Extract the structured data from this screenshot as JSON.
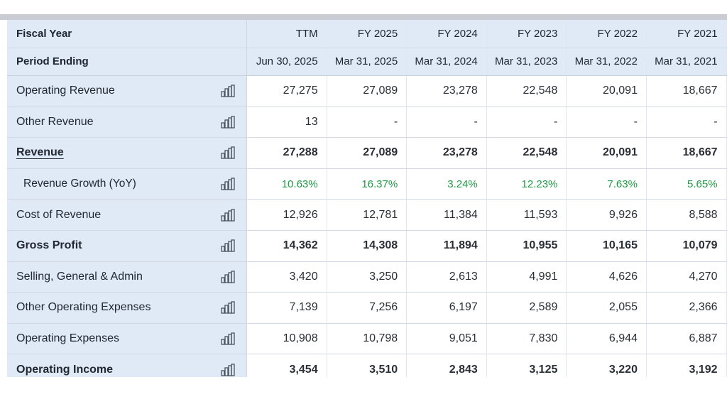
{
  "header": {
    "fiscal_year_label": "Fiscal Year",
    "period_ending_label": "Period Ending",
    "columns": [
      {
        "year": "TTM",
        "period": "Jun 30, 2025"
      },
      {
        "year": "FY 2025",
        "period": "Mar 31, 2025"
      },
      {
        "year": "FY 2024",
        "period": "Mar 31, 2024"
      },
      {
        "year": "FY 2023",
        "period": "Mar 31, 2023"
      },
      {
        "year": "FY 2022",
        "period": "Mar 31, 2022"
      },
      {
        "year": "FY 2021",
        "period": "Mar 31, 2021"
      }
    ]
  },
  "rows": [
    {
      "label": "Operating Revenue",
      "values": [
        "27,275",
        "27,089",
        "23,278",
        "22,548",
        "20,091",
        "18,667"
      ]
    },
    {
      "label": "Other Revenue",
      "values": [
        "13",
        "-",
        "-",
        "-",
        "-",
        "-"
      ]
    },
    {
      "label": "Revenue",
      "values": [
        "27,288",
        "27,089",
        "23,278",
        "22,548",
        "20,091",
        "18,667"
      ]
    },
    {
      "label": "Revenue Growth (YoY)",
      "values": [
        "10.63%",
        "16.37%",
        "3.24%",
        "12.23%",
        "7.63%",
        "5.65%"
      ]
    },
    {
      "label": "Cost of Revenue",
      "values": [
        "12,926",
        "12,781",
        "11,384",
        "11,593",
        "9,926",
        "8,588"
      ]
    },
    {
      "label": "Gross Profit",
      "values": [
        "14,362",
        "14,308",
        "11,894",
        "10,955",
        "10,165",
        "10,079"
      ]
    },
    {
      "label": "Selling, General & Admin",
      "values": [
        "3,420",
        "3,250",
        "2,613",
        "4,991",
        "4,626",
        "4,270"
      ]
    },
    {
      "label": "Other Operating Expenses",
      "values": [
        "7,139",
        "7,256",
        "6,197",
        "2,589",
        "2,055",
        "2,366"
      ]
    },
    {
      "label": "Operating Expenses",
      "values": [
        "10,908",
        "10,798",
        "9,051",
        "7,830",
        "6,944",
        "6,887"
      ]
    },
    {
      "label": "Operating Income",
      "values": [
        "3,454",
        "3,510",
        "2,843",
        "3,125",
        "3,220",
        "3,192"
      ]
    }
  ],
  "colors": {
    "label_bg": "#e0eaf7",
    "growth_positive": "#1e9a43"
  },
  "icons": {
    "row_chart": "bar-chart-icon"
  }
}
